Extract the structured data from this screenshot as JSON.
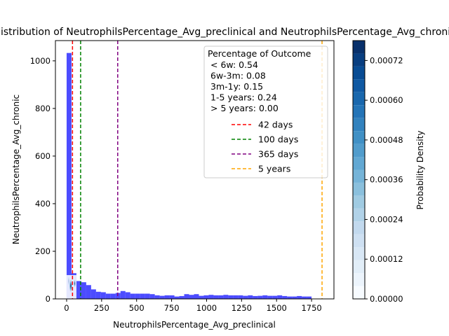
{
  "chart_data": {
    "type": "bar",
    "title": "Distribution of NeutrophilsPercentage_Avg_preclinical and NeutrophilsPercentage_Avg_chronic",
    "xlabel": "NeutrophilsPercentage_Avg_preclinical",
    "ylabel": "NeutrophilsPercentage_Avg_chronic",
    "xlim": [
      -80,
      1910
    ],
    "ylim": [
      0,
      1085
    ],
    "x_ticks": [
      0,
      250,
      500,
      750,
      1000,
      1250,
      1500,
      1750
    ],
    "y_ticks": [
      0,
      200,
      400,
      600,
      800,
      1000
    ],
    "grid": false,
    "histogram": {
      "color": "#0000ff",
      "bin_width": 35,
      "bin_start": 0,
      "counts": [
        1033,
        108,
        75,
        70,
        58,
        40,
        30,
        28,
        22,
        22,
        25,
        33,
        28,
        22,
        22,
        22,
        22,
        20,
        15,
        13,
        15,
        15,
        10,
        12,
        20,
        17,
        20,
        13,
        15,
        17,
        15,
        15,
        17,
        15,
        15,
        15,
        13,
        15,
        12,
        13,
        15,
        13,
        13,
        15,
        12,
        10,
        10,
        12,
        10,
        10
      ]
    },
    "density_blobs": [
      {
        "x": 30,
        "y": 55,
        "sx": 12,
        "sy": 30,
        "level": 1.0
      },
      {
        "x": 58,
        "y": 65,
        "sx": 8,
        "sy": 18,
        "level": 0.9
      },
      {
        "x": 15,
        "y": 75,
        "sx": 6,
        "sy": 22,
        "level": 0.35
      }
    ],
    "reference_lines": [
      {
        "label": "42 days",
        "x": 42,
        "color": "#ff0000"
      },
      {
        "label": "100 days",
        "x": 100,
        "color": "#008000"
      },
      {
        "label": "365 days",
        "x": 365,
        "color": "#800080"
      },
      {
        "label": "5 years",
        "x": 1825,
        "color": "#ffa500"
      }
    ],
    "legend": {
      "title": "Percentage of Outcome",
      "placement": "top-right",
      "lines": [
        "< 6w: 0.54",
        "6w-3m: 0.08",
        "3m-1y: 0.15",
        "1-5 years: 0.24",
        "> 5 years: 0.00"
      ]
    },
    "colorbar": {
      "label": "Probability Density",
      "range": [
        0,
        0.00078
      ],
      "ticks": [
        "0.00000",
        "0.00012",
        "0.00024",
        "0.00036",
        "0.00048",
        "0.00060",
        "0.00072"
      ],
      "levels": 20,
      "colormap": "Blues"
    }
  }
}
